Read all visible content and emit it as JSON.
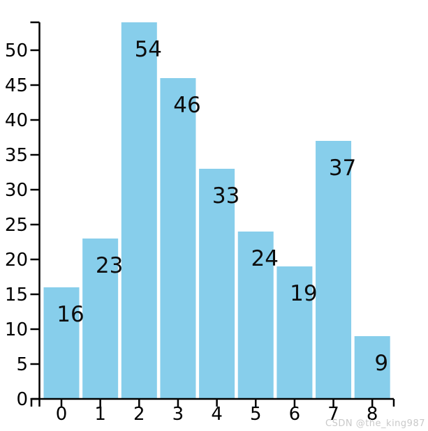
{
  "chart_data": {
    "type": "bar",
    "categories": [
      "0",
      "1",
      "2",
      "3",
      "4",
      "5",
      "6",
      "7",
      "8"
    ],
    "values": [
      16,
      23,
      54,
      46,
      33,
      24,
      19,
      37,
      9
    ],
    "bar_labels": [
      "16",
      "23",
      "54",
      "46",
      "33",
      "24",
      "19",
      "37",
      "9"
    ],
    "title": "",
    "xlabel": "",
    "ylabel": "",
    "ylim": [
      0,
      54
    ],
    "yticks": [
      0,
      5,
      10,
      15,
      20,
      25,
      30,
      35,
      40,
      45,
      50
    ],
    "grid": false,
    "legend_position": "none",
    "bar_color": "#87CEEB",
    "axis_color": "#000000",
    "tick_label_color": "#000000",
    "bar_label_color": "#0d0d0d"
  },
  "watermark": {
    "text": "CSDN @the_king987",
    "color": "#c9c9c9"
  }
}
